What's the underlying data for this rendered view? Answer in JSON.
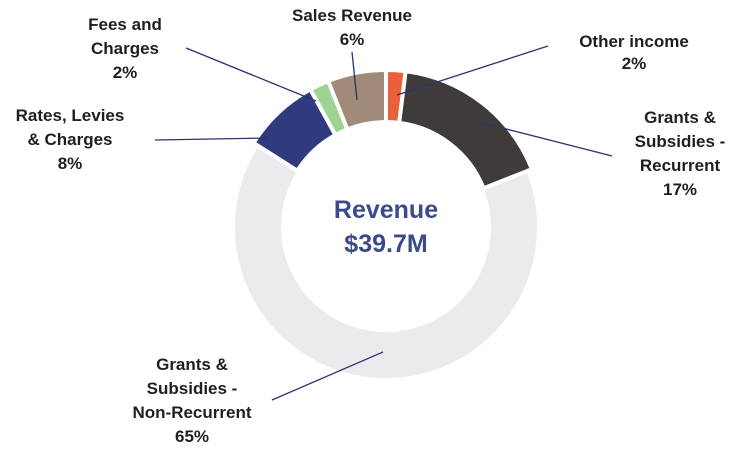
{
  "chart_data": {
    "type": "donut",
    "center_label": [
      "Revenue",
      "$39.7M"
    ],
    "categories": [
      "Other income",
      "Grants & Subsidies - Recurrent",
      "Grants & Subsidies - Non-Recurrent",
      "Rates, Levies & Charges",
      "Fees and Charges",
      "Sales Revenue"
    ],
    "values": [
      2,
      17,
      65,
      8,
      2,
      6
    ],
    "value_labels": [
      "2%",
      "17%",
      "65%",
      "8%",
      "2%",
      "6%"
    ],
    "colors": [
      "#e8613a",
      "#403b3b",
      "#ebebed",
      "#2f3b7e",
      "#9ed394",
      "#a08a78"
    ]
  }
}
